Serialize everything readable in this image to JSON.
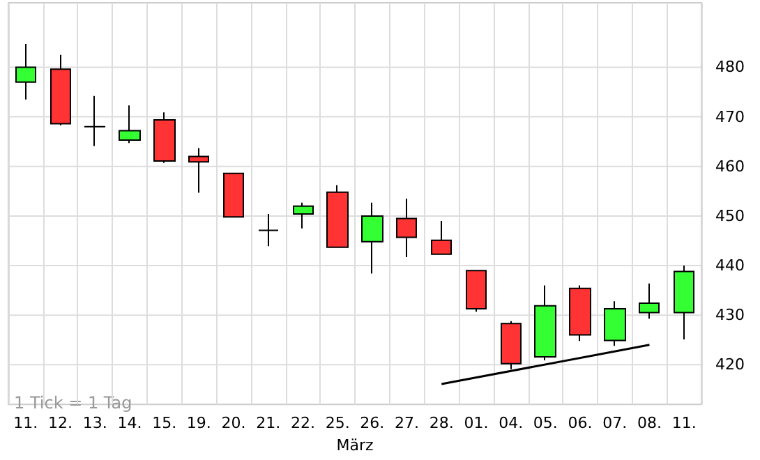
{
  "chart_data": {
    "type": "candlestick",
    "categories": [
      "11.",
      "12.",
      "13.",
      "14.",
      "15.",
      "19.",
      "20.",
      "21.",
      "22.",
      "25.",
      "26.",
      "27.",
      "28.",
      "01.",
      "04.",
      "05.",
      "06.",
      "07.",
      "08.",
      "11."
    ],
    "ohlc": [
      [
        477,
        484.7,
        473.5,
        480
      ],
      [
        479.6,
        482.5,
        468.3,
        468.6
      ],
      [
        468,
        474.2,
        464.1,
        468
      ],
      [
        465.3,
        472.3,
        464.7,
        467.2
      ],
      [
        469.4,
        470.9,
        460.7,
        461.1
      ],
      [
        462,
        463.7,
        454.7,
        460.9
      ],
      [
        458.6,
        458.6,
        449.8,
        449.8
      ],
      [
        447.1,
        450.4,
        443.9,
        447.1
      ],
      [
        450.4,
        452.7,
        447.5,
        452
      ],
      [
        454.8,
        456.2,
        443.7,
        443.7
      ],
      [
        444.8,
        452.7,
        438.4,
        450
      ],
      [
        449.5,
        453.5,
        441.7,
        445.7
      ],
      [
        445.1,
        449,
        442.3,
        442.3
      ],
      [
        439,
        439,
        430.7,
        431.3
      ],
      [
        428.3,
        428.8,
        419.1,
        420.2
      ],
      [
        421.6,
        436,
        420.9,
        431.9
      ],
      [
        435.4,
        436,
        424.8,
        426
      ],
      [
        424.9,
        432.8,
        423.8,
        431.3
      ],
      [
        430.5,
        436.4,
        429.3,
        432.4
      ],
      [
        430.5,
        440,
        425.1,
        438.8
      ]
    ],
    "colors": [
      "#33ff33",
      "#ff3333",
      "#000000",
      "#33ff33",
      "#ff3333",
      "#ff3333",
      "#ff3333",
      "#000000",
      "#33ff33",
      "#ff3333",
      "#33ff33",
      "#ff3333",
      "#ff3333",
      "#ff3333",
      "#ff3333",
      "#33ff33",
      "#ff3333",
      "#33ff33",
      "#33ff33",
      "#33ff33"
    ],
    "series": [
      {
        "type": "line",
        "x": [
          "28.",
          "08."
        ],
        "values": [
          416.1,
          424
        ],
        "color": "#000000"
      }
    ],
    "ylim": [
      412,
      493
    ],
    "yticks": [
      420,
      430,
      440,
      450,
      460,
      470,
      480
    ],
    "grid": true,
    "xlabel": "März",
    "annotations": [
      "1 Tick = 1 Tag"
    ]
  }
}
